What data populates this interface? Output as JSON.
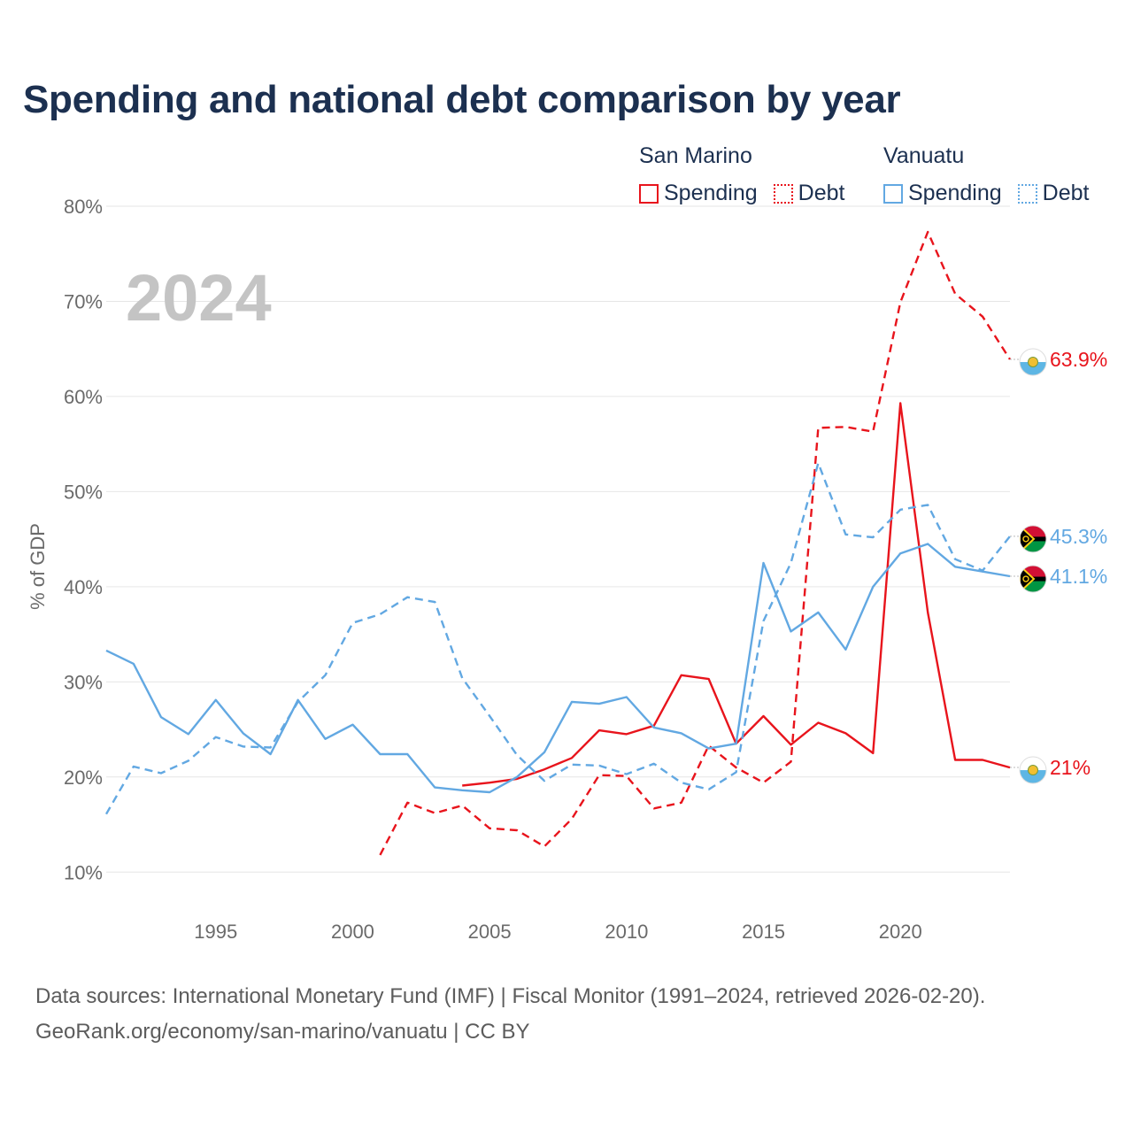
{
  "title": "Spending and national debt comparison by year",
  "legend": {
    "groups": [
      {
        "name": "San Marino",
        "color": "#e8141c",
        "spending_label": "Spending",
        "debt_label": "Debt"
      },
      {
        "name": "Vanuatu",
        "color": "#62a8e2",
        "spending_label": "Spending",
        "debt_label": "Debt"
      }
    ]
  },
  "year_watermark": "2024",
  "footer": {
    "sources": "Data sources: International Monetary Fund (IMF) | Fiscal Monitor (1991–2024, retrieved 2026-02-20).",
    "credit": "GeoRank.org/economy/san-marino/vanuatu | CC BY"
  },
  "chart_data": {
    "type": "line",
    "title": "Spending and national debt comparison by year",
    "xlabel": "",
    "ylabel": "% of GDP",
    "xlim": [
      1991,
      2024
    ],
    "ylim": [
      5,
      80
    ],
    "x_ticks": [
      1995,
      2000,
      2005,
      2010,
      2015,
      2020
    ],
    "y_ticks": [
      10,
      20,
      30,
      40,
      50,
      60,
      70,
      80
    ],
    "y_tick_labels": [
      "10%",
      "20%",
      "30%",
      "40%",
      "50%",
      "60%",
      "70%",
      "80%"
    ],
    "grid": true,
    "legend_position": "top-right",
    "series": [
      {
        "name": "San Marino Spending",
        "country": "San Marino",
        "measure": "Spending",
        "color": "#e8141c",
        "dash": "solid",
        "flag": "san-marino",
        "end_label": "21%",
        "x": [
          2004,
          2005,
          2006,
          2007,
          2008,
          2009,
          2010,
          2011,
          2012,
          2013,
          2014,
          2015,
          2016,
          2017,
          2018,
          2019,
          2020,
          2021,
          2022,
          2023,
          2024
        ],
        "y": [
          19.1,
          19.4,
          19.8,
          20.8,
          22.0,
          24.9,
          24.5,
          25.4,
          30.7,
          30.3,
          23.5,
          26.4,
          23.4,
          25.7,
          24.6,
          22.5,
          59.3,
          37.3,
          21.8,
          21.8,
          21.0
        ]
      },
      {
        "name": "San Marino Debt",
        "country": "San Marino",
        "measure": "Debt",
        "color": "#e8141c",
        "dash": "dashed",
        "flag": "san-marino",
        "end_label": "63.9%",
        "x": [
          2001,
          2002,
          2003,
          2004,
          2005,
          2006,
          2007,
          2008,
          2009,
          2010,
          2011,
          2012,
          2013,
          2014,
          2015,
          2016,
          2017,
          2018,
          2019,
          2020,
          2021,
          2022,
          2023,
          2024
        ],
        "y": [
          11.8,
          17.3,
          16.2,
          17.0,
          14.6,
          14.4,
          12.7,
          15.6,
          20.2,
          20.1,
          16.7,
          17.3,
          23.3,
          21.0,
          19.4,
          21.6,
          56.7,
          56.8,
          56.3,
          69.9,
          77.3,
          70.8,
          68.4,
          63.9
        ]
      },
      {
        "name": "Vanuatu Spending",
        "country": "Vanuatu",
        "measure": "Spending",
        "color": "#62a8e2",
        "dash": "solid",
        "flag": "vanuatu",
        "end_label": "41.1%",
        "x": [
          1991,
          1992,
          1993,
          1994,
          1995,
          1996,
          1997,
          1998,
          1999,
          2000,
          2001,
          2002,
          2003,
          2004,
          2005,
          2006,
          2007,
          2008,
          2009,
          2010,
          2011,
          2012,
          2013,
          2014,
          2015,
          2016,
          2017,
          2018,
          2019,
          2020,
          2021,
          2022,
          2023,
          2024
        ],
        "y": [
          33.3,
          31.9,
          26.3,
          24.5,
          28.1,
          24.6,
          22.4,
          28.1,
          24.0,
          25.5,
          22.4,
          22.4,
          18.9,
          18.6,
          18.4,
          20.0,
          22.6,
          27.9,
          27.7,
          28.4,
          25.2,
          24.6,
          23.0,
          23.5,
          42.5,
          35.3,
          37.3,
          33.4,
          40.0,
          43.5,
          44.5,
          42.1,
          41.6,
          41.1
        ]
      },
      {
        "name": "Vanuatu Debt",
        "country": "Vanuatu",
        "measure": "Debt",
        "color": "#62a8e2",
        "dash": "dashed",
        "flag": "vanuatu",
        "end_label": "45.3%",
        "x": [
          1991,
          1992,
          1993,
          1994,
          1995,
          1996,
          1997,
          1998,
          1999,
          2000,
          2001,
          2002,
          2003,
          2004,
          2005,
          2006,
          2007,
          2008,
          2009,
          2010,
          2011,
          2012,
          2013,
          2014,
          2015,
          2016,
          2017,
          2018,
          2019,
          2020,
          2021,
          2022,
          2023,
          2024
        ],
        "y": [
          16.1,
          21.1,
          20.4,
          21.7,
          24.2,
          23.2,
          23.1,
          27.9,
          30.7,
          36.2,
          37.1,
          38.9,
          38.4,
          30.4,
          26.4,
          22.3,
          19.6,
          21.3,
          21.2,
          20.3,
          21.4,
          19.4,
          18.7,
          20.5,
          36.4,
          42.5,
          53.0,
          45.5,
          45.2,
          48.1,
          48.6,
          42.9,
          41.7,
          45.3
        ]
      }
    ]
  }
}
